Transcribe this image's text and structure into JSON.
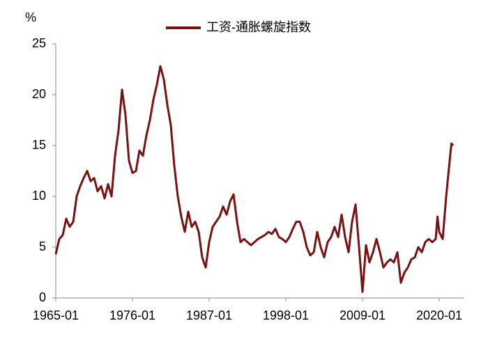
{
  "chart_data": {
    "type": "line",
    "y_label": "%",
    "x": [
      "1965-01",
      "1965-07",
      "1966-01",
      "1966-07",
      "1967-01",
      "1967-07",
      "1968-01",
      "1968-07",
      "1969-01",
      "1969-07",
      "1970-01",
      "1970-07",
      "1971-01",
      "1971-07",
      "1972-01",
      "1972-07",
      "1973-01",
      "1973-07",
      "1974-01",
      "1974-07",
      "1975-01",
      "1975-07",
      "1976-01",
      "1976-07",
      "1977-01",
      "1977-07",
      "1978-01",
      "1978-07",
      "1979-01",
      "1979-07",
      "1980-01",
      "1980-07",
      "1981-01",
      "1981-07",
      "1982-01",
      "1982-07",
      "1983-01",
      "1983-07",
      "1984-01",
      "1984-07",
      "1985-01",
      "1985-07",
      "1986-01",
      "1986-07",
      "1987-01",
      "1987-07",
      "1988-01",
      "1988-07",
      "1989-01",
      "1989-07",
      "1990-01",
      "1990-07",
      "1991-01",
      "1991-07",
      "1992-01",
      "1992-07",
      "1993-01",
      "1993-07",
      "1994-01",
      "1994-07",
      "1995-01",
      "1995-07",
      "1996-01",
      "1996-07",
      "1997-01",
      "1997-07",
      "1998-01",
      "1998-07",
      "1999-01",
      "1999-07",
      "2000-01",
      "2000-07",
      "2001-01",
      "2001-07",
      "2002-01",
      "2002-07",
      "2003-01",
      "2003-07",
      "2004-01",
      "2004-07",
      "2005-01",
      "2005-07",
      "2006-01",
      "2006-07",
      "2007-01",
      "2007-07",
      "2008-01",
      "2008-07",
      "2009-01",
      "2009-07",
      "2010-01",
      "2010-07",
      "2011-01",
      "2011-07",
      "2012-01",
      "2012-07",
      "2013-01",
      "2013-07",
      "2014-01",
      "2014-07",
      "2015-01",
      "2015-07",
      "2016-01",
      "2016-07",
      "2017-01",
      "2017-07",
      "2018-01",
      "2018-07",
      "2019-01",
      "2019-07",
      "2019-10",
      "2020-01",
      "2020-07",
      "2021-01",
      "2021-07",
      "2021-10",
      "2022-01"
    ],
    "series": [
      {
        "name": "工资-通胀螺旋指数",
        "color": "#7b1010",
        "values": [
          4.3,
          5.8,
          6.2,
          7.8,
          7.0,
          7.5,
          10.0,
          11.0,
          11.8,
          12.5,
          11.5,
          11.8,
          10.5,
          11.0,
          9.8,
          11.2,
          10.0,
          14.0,
          16.5,
          20.5,
          18.0,
          13.5,
          12.3,
          12.5,
          14.5,
          14.0,
          16.0,
          17.5,
          19.5,
          21.0,
          22.8,
          21.5,
          19.0,
          17.0,
          13.0,
          10.0,
          8.0,
          6.5,
          8.5,
          7.0,
          7.5,
          6.5,
          4.0,
          3.0,
          5.5,
          7.0,
          7.5,
          8.0,
          9.0,
          8.2,
          9.5,
          10.2,
          7.5,
          5.5,
          5.8,
          5.5,
          5.2,
          5.5,
          5.8,
          6.0,
          6.2,
          6.5,
          6.3,
          6.8,
          6.0,
          5.8,
          5.5,
          6.0,
          6.8,
          7.5,
          7.5,
          6.5,
          5.0,
          4.2,
          4.5,
          6.5,
          5.0,
          4.0,
          5.5,
          6.0,
          7.0,
          6.0,
          8.2,
          6.0,
          4.5,
          7.5,
          9.2,
          5.0,
          0.6,
          5.2,
          3.5,
          4.5,
          5.8,
          4.5,
          3.0,
          3.5,
          3.8,
          3.5,
          4.5,
          1.5,
          2.5,
          3.0,
          3.8,
          4.0,
          5.0,
          4.5,
          5.5,
          5.8,
          5.5,
          5.8,
          8.0,
          6.5,
          5.8,
          10.0,
          13.5,
          15.2,
          15.0
        ]
      }
    ],
    "xlim": [
      "1965-01",
      "2023-07"
    ],
    "xticks": [
      "1965-01",
      "1976-01",
      "1987-01",
      "1998-01",
      "2009-01",
      "2020-01"
    ],
    "ylim": [
      0,
      25
    ],
    "yticks": [
      0,
      5,
      10,
      15,
      20,
      25
    ],
    "grid": false,
    "legend": "top"
  }
}
